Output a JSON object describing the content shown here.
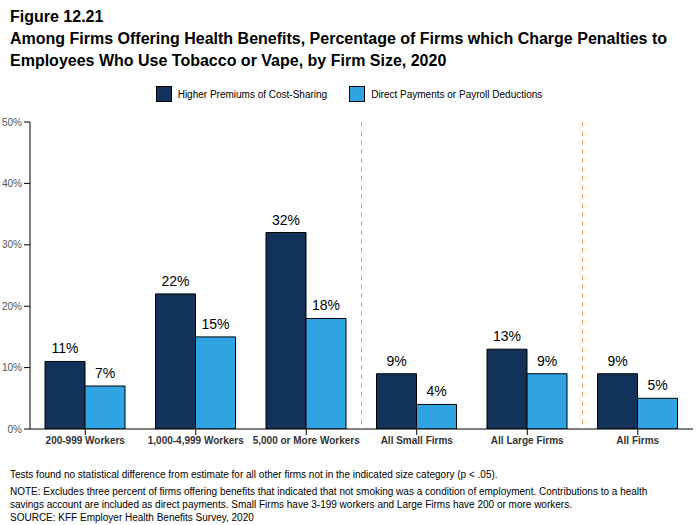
{
  "chart_data": {
    "type": "bar",
    "title": "Figure 12.21",
    "subtitle": "Among Firms Offering Health Benefits, Percentage of Firms which Charge Penalties to Employees Who Use Tobacco or Vape, by Firm Size, 2020",
    "categories": [
      "200-999 Workers",
      "1,000-4,999 Workers",
      "5,000 or More Workers",
      "All Small Firms",
      "All Large Firms",
      "All Firms"
    ],
    "series": [
      {
        "name": "Higher Premiums of Cost-Sharing",
        "color": "#12325a",
        "values": [
          11,
          22,
          32,
          9,
          13,
          9
        ],
        "value_labels": [
          "11%",
          "22%",
          "32%",
          "9%",
          "13%",
          "9%"
        ]
      },
      {
        "name": "Direct Payments or Payroll Deductions",
        "color": "#30a3e3",
        "values": [
          7,
          15,
          18,
          4,
          9,
          5
        ],
        "value_labels": [
          "7%",
          "15%",
          "18%",
          "4%",
          "9%",
          "5%"
        ]
      }
    ],
    "ylim": [
      0,
      50
    ],
    "yticks": [
      {
        "value": 0,
        "label": "0%"
      },
      {
        "value": 10,
        "label": "10%"
      },
      {
        "value": 20,
        "label": "20%"
      },
      {
        "value": 30,
        "label": "30%"
      },
      {
        "value": 40,
        "label": "40%"
      },
      {
        "value": 50,
        "label": "50%"
      }
    ],
    "grid": false,
    "legend": "top",
    "data_labels": true,
    "annotations": [
      "Tests found no statistical difference from estimate for all other firms not in the indicated size category (p < .05).",
      "NOTE: Excludes three percent of firms offering benefits that indicated that not smoking was a condition of employment.  Contributions to a health",
      "savings account are included as direct payments. Small Firms have 3-199 workers and Large Firms have 200 or more workers.",
      "SOURCE: KFF Employer Health Benefits Survey, 2020"
    ]
  }
}
